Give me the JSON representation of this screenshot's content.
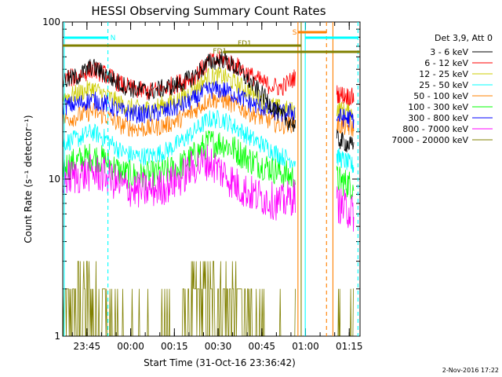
{
  "chart_data": {
    "type": "line",
    "title": "HESSI Observing Summary Count Rates",
    "xlabel": "Start Time (31-Oct-16 23:36:42)",
    "ylabel": "Count Rate (s⁻¹ detector⁻¹)",
    "ylog": true,
    "ylim": [
      1,
      100
    ],
    "xlim_minutes": [
      0,
      102
    ],
    "x_ticks": [
      "23:45",
      "00:00",
      "00:15",
      "00:30",
      "00:45",
      "01:00",
      "01:15"
    ],
    "y_ticks": [
      "1",
      "10",
      "100"
    ],
    "legend_title": "Det 3,9, Att 0",
    "series": [
      {
        "name": "3 - 6 keV",
        "color": "#000000",
        "seg1": [
          [
            0,
            42
          ],
          [
            5,
            45
          ],
          [
            10,
            52
          ],
          [
            15,
            46
          ],
          [
            20,
            40
          ],
          [
            25,
            37
          ],
          [
            30,
            36
          ],
          [
            35,
            38
          ],
          [
            40,
            40
          ],
          [
            45,
            45
          ],
          [
            50,
            55
          ],
          [
            55,
            58
          ],
          [
            60,
            50
          ],
          [
            65,
            40
          ],
          [
            70,
            32
          ],
          [
            75,
            25
          ],
          [
            80,
            22
          ]
        ],
        "seg2": [
          [
            94,
            18
          ],
          [
            100,
            16
          ]
        ]
      },
      {
        "name": "6 - 12 keV",
        "color": "#ff0000",
        "seg1": [
          [
            0,
            43
          ],
          [
            5,
            45
          ],
          [
            10,
            50
          ],
          [
            15,
            46
          ],
          [
            20,
            40
          ],
          [
            25,
            37
          ],
          [
            30,
            36
          ],
          [
            35,
            38
          ],
          [
            40,
            41
          ],
          [
            45,
            45
          ],
          [
            50,
            55
          ],
          [
            55,
            58
          ],
          [
            60,
            52
          ],
          [
            65,
            45
          ],
          [
            70,
            40
          ],
          [
            75,
            38
          ],
          [
            80,
            45
          ]
        ],
        "seg2": [
          [
            94,
            35
          ],
          [
            100,
            33
          ]
        ]
      },
      {
        "name": "12 - 25 keV",
        "color": "#cccc00",
        "seg1": [
          [
            0,
            33
          ],
          [
            5,
            35
          ],
          [
            10,
            38
          ],
          [
            15,
            34
          ],
          [
            20,
            30
          ],
          [
            25,
            28
          ],
          [
            30,
            28
          ],
          [
            35,
            30
          ],
          [
            40,
            32
          ],
          [
            45,
            37
          ],
          [
            50,
            45
          ],
          [
            55,
            45
          ],
          [
            60,
            40
          ],
          [
            65,
            35
          ],
          [
            70,
            30
          ],
          [
            75,
            28
          ],
          [
            80,
            27
          ]
        ],
        "seg2": [
          [
            94,
            28
          ],
          [
            100,
            26
          ]
        ]
      },
      {
        "name": "25 - 50 keV",
        "color": "#00ffff",
        "seg1": [
          [
            0,
            17
          ],
          [
            5,
            18
          ],
          [
            10,
            20
          ],
          [
            15,
            18
          ],
          [
            20,
            15
          ],
          [
            25,
            14
          ],
          [
            30,
            14
          ],
          [
            35,
            15
          ],
          [
            40,
            17
          ],
          [
            45,
            20
          ],
          [
            50,
            24
          ],
          [
            55,
            24
          ],
          [
            60,
            21
          ],
          [
            65,
            18
          ],
          [
            70,
            16
          ],
          [
            75,
            14
          ],
          [
            80,
            13
          ]
        ],
        "seg2": [
          [
            94,
            14
          ],
          [
            100,
            12
          ]
        ]
      },
      {
        "name": "50 - 100 keV",
        "color": "#ff8000",
        "seg1": [
          [
            0,
            24
          ],
          [
            5,
            25
          ],
          [
            10,
            27
          ],
          [
            15,
            25
          ],
          [
            20,
            22
          ],
          [
            25,
            21
          ],
          [
            30,
            21
          ],
          [
            35,
            22
          ],
          [
            40,
            24
          ],
          [
            45,
            27
          ],
          [
            50,
            32
          ],
          [
            55,
            32
          ],
          [
            60,
            29
          ],
          [
            65,
            26
          ],
          [
            70,
            24
          ],
          [
            75,
            22
          ],
          [
            80,
            23
          ]
        ],
        "seg2": [
          [
            94,
            22
          ],
          [
            100,
            21
          ]
        ]
      },
      {
        "name": "100 - 300 keV",
        "color": "#00ff00",
        "seg1": [
          [
            0,
            12
          ],
          [
            5,
            13
          ],
          [
            10,
            14
          ],
          [
            15,
            13
          ],
          [
            20,
            11
          ],
          [
            25,
            10.5
          ],
          [
            30,
            10.5
          ],
          [
            35,
            11
          ],
          [
            40,
            12
          ],
          [
            45,
            14
          ],
          [
            50,
            17
          ],
          [
            55,
            17
          ],
          [
            60,
            15
          ],
          [
            65,
            13
          ],
          [
            70,
            12
          ],
          [
            75,
            11
          ],
          [
            80,
            10
          ]
        ],
        "seg2": [
          [
            94,
            10
          ],
          [
            100,
            9
          ]
        ]
      },
      {
        "name": "300 - 800 keV",
        "color": "#0000ff",
        "seg1": [
          [
            0,
            29
          ],
          [
            5,
            30
          ],
          [
            10,
            32
          ],
          [
            15,
            30
          ],
          [
            20,
            27
          ],
          [
            25,
            26
          ],
          [
            30,
            26
          ],
          [
            35,
            27
          ],
          [
            40,
            29
          ],
          [
            45,
            32
          ],
          [
            50,
            37
          ],
          [
            55,
            37
          ],
          [
            60,
            34
          ],
          [
            65,
            30
          ],
          [
            70,
            28
          ],
          [
            75,
            26
          ],
          [
            80,
            27
          ]
        ],
        "seg2": [
          [
            94,
            25
          ],
          [
            100,
            24
          ]
        ]
      },
      {
        "name": "800 - 7000 keV",
        "color": "#ff00ff",
        "seg1": [
          [
            0,
            10
          ],
          [
            5,
            10.5
          ],
          [
            10,
            11
          ],
          [
            15,
            10.5
          ],
          [
            20,
            9
          ],
          [
            25,
            8.5
          ],
          [
            30,
            8.5
          ],
          [
            35,
            9
          ],
          [
            40,
            10
          ],
          [
            45,
            12
          ],
          [
            50,
            13
          ],
          [
            55,
            11
          ],
          [
            60,
            9
          ],
          [
            65,
            8
          ],
          [
            70,
            7.5
          ],
          [
            75,
            7
          ],
          [
            80,
            8
          ]
        ],
        "seg2": [
          [
            94,
            7
          ],
          [
            100,
            6
          ]
        ]
      },
      {
        "name": "7000 - 20000 keV",
        "color": "#808000",
        "seg1": [
          [
            0,
            1.4
          ],
          [
            5,
            1.5
          ],
          [
            10,
            1.6
          ],
          [
            15,
            1.3
          ],
          [
            20,
            1
          ],
          [
            25,
            1
          ],
          [
            30,
            1
          ],
          [
            35,
            1
          ],
          [
            40,
            1.2
          ],
          [
            45,
            1.6
          ],
          [
            50,
            1.9
          ],
          [
            55,
            1.8
          ],
          [
            60,
            1.5
          ],
          [
            65,
            1.2
          ],
          [
            70,
            1
          ],
          [
            75,
            1
          ],
          [
            80,
            1
          ]
        ],
        "seg2": [
          [
            94,
            1
          ],
          [
            100,
            1
          ]
        ]
      }
    ],
    "annotations": {
      "n_label": "N",
      "s_label": "S",
      "fd1_label": "FD1",
      "fd1_label_2": "FD1"
    }
  },
  "footer": {
    "timestamp": "2-Nov-2016 17:22"
  }
}
